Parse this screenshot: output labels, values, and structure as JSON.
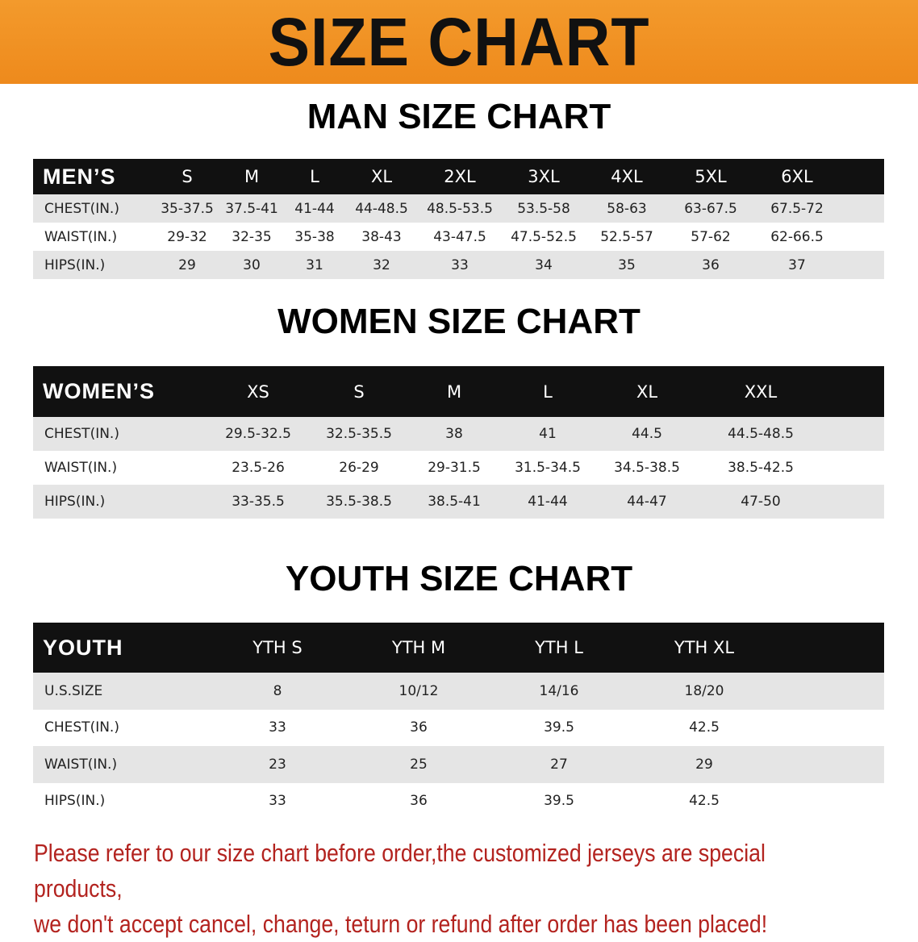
{
  "banner": "SIZE CHART",
  "men": {
    "title": "MAN SIZE CHART",
    "header": [
      "MEN’S",
      "S",
      "M",
      "L",
      "XL",
      "2XL",
      "3XL",
      "4XL",
      "5XL",
      "6XL"
    ],
    "rows": [
      [
        "CHEST(IN.)",
        "35-37.5",
        "37.5-41",
        "41-44",
        "44-48.5",
        "48.5-53.5",
        "53.5-58",
        "58-63",
        "63-67.5",
        "67.5-72"
      ],
      [
        "WAIST(IN.)",
        "29-32",
        "32-35",
        "35-38",
        "38-43",
        "43-47.5",
        "47.5-52.5",
        "52.5-57",
        "57-62",
        "62-66.5"
      ],
      [
        "HIPS(IN.)",
        "29",
        "30",
        "31",
        "32",
        "33",
        "34",
        "35",
        "36",
        "37"
      ]
    ]
  },
  "women": {
    "title": "WOMEN SIZE CHART",
    "header": [
      "WOMEN’S",
      "XS",
      "S",
      "M",
      "L",
      "XL",
      "XXL"
    ],
    "rows": [
      [
        "CHEST(IN.)",
        "29.5-32.5",
        "32.5-35.5",
        "38",
        "41",
        "44.5",
        "44.5-48.5"
      ],
      [
        "WAIST(IN.)",
        "23.5-26",
        "26-29",
        "29-31.5",
        "31.5-34.5",
        "34.5-38.5",
        "38.5-42.5"
      ],
      [
        "HIPS(IN.)",
        "33-35.5",
        "35.5-38.5",
        "38.5-41",
        "41-44",
        "44-47",
        "47-50"
      ]
    ]
  },
  "youth": {
    "title": "YOUTH SIZE CHART",
    "header": [
      "YOUTH",
      "YTH S",
      "YTH M",
      "YTH L",
      "YTH XL"
    ],
    "rows": [
      [
        "U.S.SIZE",
        "8",
        "10/12",
        "14/16",
        "18/20"
      ],
      [
        "CHEST(IN.)",
        "33",
        "36",
        "39.5",
        "42.5"
      ],
      [
        "WAIST(IN.)",
        "23",
        "25",
        "27",
        "29"
      ],
      [
        "HIPS(IN.)",
        "33",
        "36",
        "39.5",
        "42.5"
      ]
    ]
  },
  "note": [
    "Please refer to our size chart before order,the customized jerseys are special products,",
    "we don't accept cancel, change, teturn or refund after order has been placed!"
  ],
  "colors": {
    "banner": "#ef8d20",
    "header": "#111111",
    "row_alt": "#e5e5e5",
    "note": "#b3231f"
  }
}
